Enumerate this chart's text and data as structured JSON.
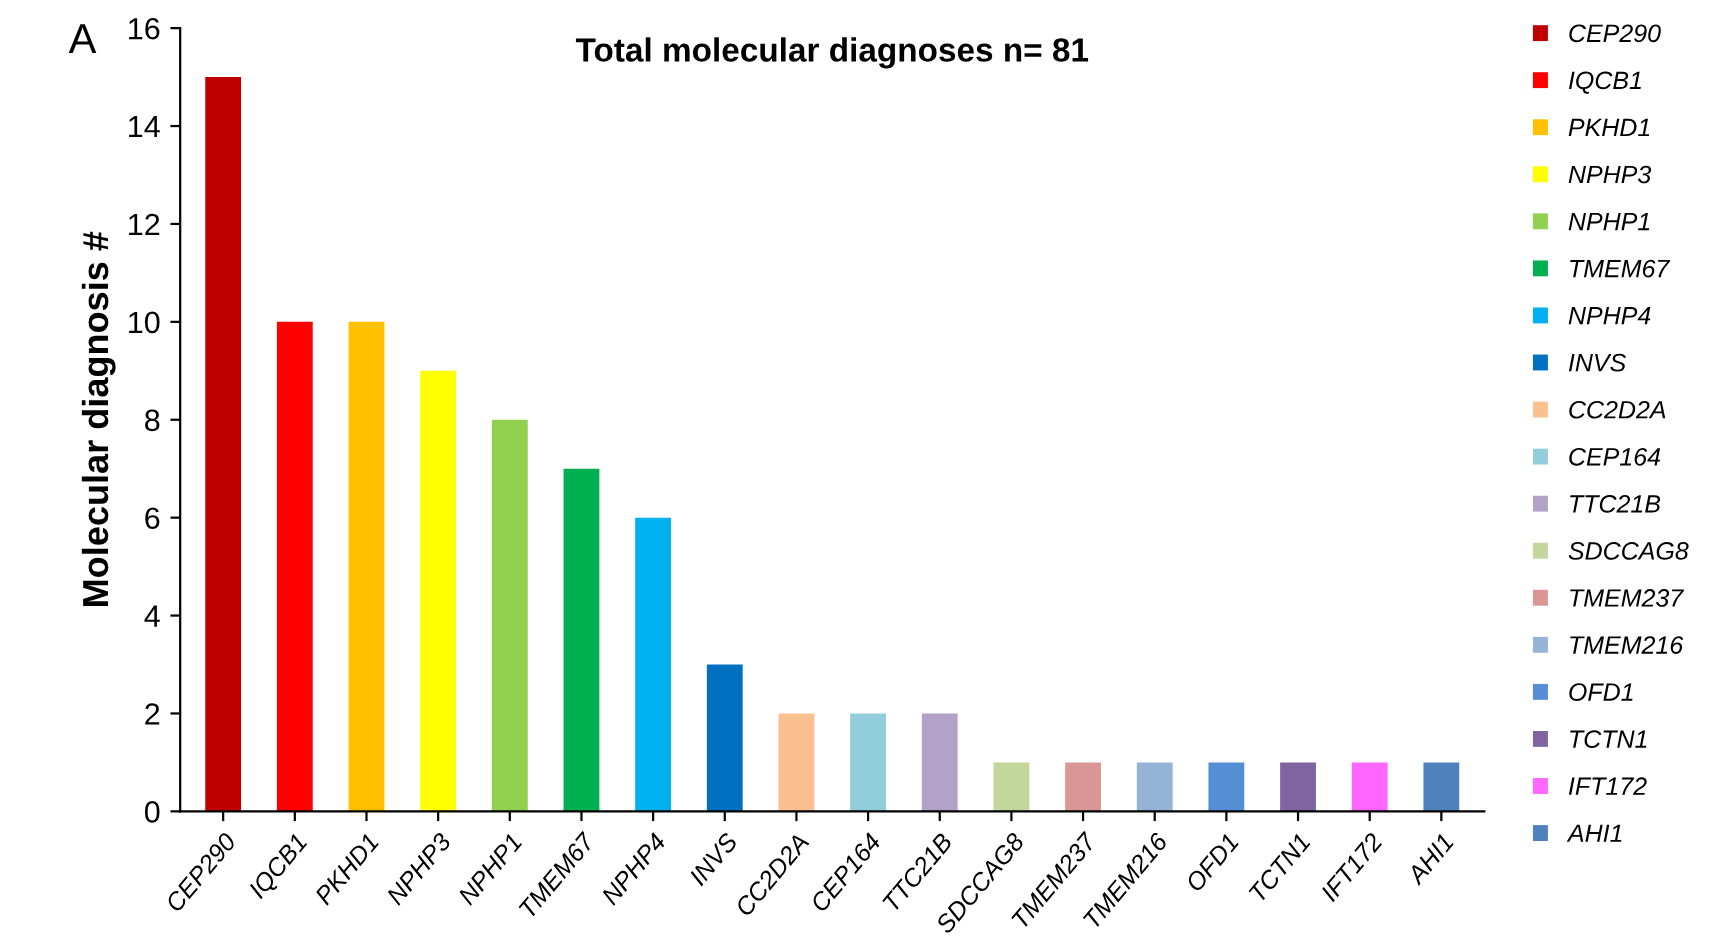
{
  "chart_data": {
    "type": "bar",
    "title": "Total molecular diagnoses n= 81",
    "ylabel": "Molecular diagnosis #",
    "annotations": [
      "A"
    ],
    "categories": [
      "CEP290",
      "IQCB1",
      "PKHD1",
      "NPHP3",
      "NPHP1",
      "TMEM67",
      "NPHP4",
      "INVS",
      "CC2D2A",
      "CEP164",
      "TTC21B",
      "SDCCAG8",
      "TMEM237",
      "TMEM216",
      "OFD1",
      "TCTN1",
      "IFT172",
      "AHI1"
    ],
    "series": [
      {
        "name": "CEP290",
        "color": "#c00000",
        "values": [
          15,
          null,
          null,
          null,
          null,
          null,
          null,
          null,
          null,
          null,
          null,
          null,
          null,
          null,
          null,
          null,
          null,
          null
        ]
      },
      {
        "name": "IQCB1",
        "color": "#ff0000",
        "values": [
          null,
          10,
          null,
          null,
          null,
          null,
          null,
          null,
          null,
          null,
          null,
          null,
          null,
          null,
          null,
          null,
          null,
          null
        ]
      },
      {
        "name": "PKHD1",
        "color": "#ffc000",
        "values": [
          null,
          null,
          10,
          null,
          null,
          null,
          null,
          null,
          null,
          null,
          null,
          null,
          null,
          null,
          null,
          null,
          null,
          null
        ]
      },
      {
        "name": "NPHP3",
        "color": "#ffff00",
        "values": [
          null,
          null,
          null,
          9,
          null,
          null,
          null,
          null,
          null,
          null,
          null,
          null,
          null,
          null,
          null,
          null,
          null,
          null
        ]
      },
      {
        "name": "NPHP1",
        "color": "#92d050",
        "values": [
          null,
          null,
          null,
          null,
          8,
          null,
          null,
          null,
          null,
          null,
          null,
          null,
          null,
          null,
          null,
          null,
          null,
          null
        ]
      },
      {
        "name": "TMEM67",
        "color": "#00b050",
        "values": [
          null,
          null,
          null,
          null,
          null,
          7,
          null,
          null,
          null,
          null,
          null,
          null,
          null,
          null,
          null,
          null,
          null,
          null
        ]
      },
      {
        "name": "NPHP4",
        "color": "#00b0f0",
        "values": [
          null,
          null,
          null,
          null,
          null,
          null,
          6,
          null,
          null,
          null,
          null,
          null,
          null,
          null,
          null,
          null,
          null,
          null
        ]
      },
      {
        "name": "INVS",
        "color": "#0070c0",
        "values": [
          null,
          null,
          null,
          null,
          null,
          null,
          null,
          3,
          null,
          null,
          null,
          null,
          null,
          null,
          null,
          null,
          null,
          null
        ]
      },
      {
        "name": "CC2D2A",
        "color": "#fac090",
        "values": [
          null,
          null,
          null,
          null,
          null,
          null,
          null,
          null,
          2,
          null,
          null,
          null,
          null,
          null,
          null,
          null,
          null,
          null
        ]
      },
      {
        "name": "CEP164",
        "color": "#92cddc",
        "values": [
          null,
          null,
          null,
          null,
          null,
          null,
          null,
          null,
          null,
          2,
          null,
          null,
          null,
          null,
          null,
          null,
          null,
          null
        ]
      },
      {
        "name": "TTC21B",
        "color": "#b3a2c7",
        "values": [
          null,
          null,
          null,
          null,
          null,
          null,
          null,
          null,
          null,
          null,
          2,
          null,
          null,
          null,
          null,
          null,
          null,
          null
        ]
      },
      {
        "name": "SDCCAG8",
        "color": "#c3d69b",
        "values": [
          null,
          null,
          null,
          null,
          null,
          null,
          null,
          null,
          null,
          null,
          null,
          1,
          null,
          null,
          null,
          null,
          null,
          null
        ]
      },
      {
        "name": "TMEM237",
        "color": "#d99694",
        "values": [
          null,
          null,
          null,
          null,
          null,
          null,
          null,
          null,
          null,
          null,
          null,
          null,
          1,
          null,
          null,
          null,
          null,
          null
        ]
      },
      {
        "name": "TMEM216",
        "color": "#95b3d7",
        "values": [
          null,
          null,
          null,
          null,
          null,
          null,
          null,
          null,
          null,
          null,
          null,
          null,
          null,
          1,
          null,
          null,
          null,
          null
        ]
      },
      {
        "name": "OFD1",
        "color": "#558ed5",
        "values": [
          null,
          null,
          null,
          null,
          null,
          null,
          null,
          null,
          null,
          null,
          null,
          null,
          null,
          null,
          1,
          null,
          null,
          null
        ]
      },
      {
        "name": "TCTN1",
        "color": "#8064a2",
        "values": [
          null,
          null,
          null,
          null,
          null,
          null,
          null,
          null,
          null,
          null,
          null,
          null,
          null,
          null,
          null,
          1,
          null,
          null
        ]
      },
      {
        "name": "IFT172",
        "color": "#ff66ff",
        "values": [
          null,
          null,
          null,
          null,
          null,
          null,
          null,
          null,
          null,
          null,
          null,
          null,
          null,
          null,
          null,
          null,
          1,
          null
        ]
      },
      {
        "name": "AHI1",
        "color": "#4f81bd",
        "values": [
          null,
          null,
          null,
          null,
          null,
          null,
          null,
          null,
          null,
          null,
          null,
          null,
          null,
          null,
          null,
          null,
          null,
          1
        ]
      }
    ],
    "ylim": [
      0,
      16
    ],
    "yticks": [
      0,
      2,
      4,
      6,
      8,
      10,
      12,
      14,
      16
    ],
    "grid": false,
    "legend": "right"
  }
}
